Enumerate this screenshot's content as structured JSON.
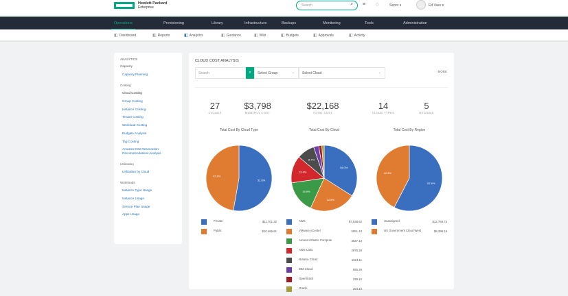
{
  "header": {
    "brand_line1": "Hewlett Packard",
    "brand_line2": "Enterprise",
    "search_placeholder": "Search",
    "tenant": "Sepro",
    "user": "Ed Vasv"
  },
  "nav": [
    {
      "label": "Operations",
      "active": true
    },
    {
      "label": "Provisioning"
    },
    {
      "label": "Library"
    },
    {
      "label": "Infrastructure"
    },
    {
      "label": "Backups"
    },
    {
      "label": "Monitoring"
    },
    {
      "label": "Tools"
    },
    {
      "label": "Administration"
    }
  ],
  "subnav": [
    {
      "label": "Dashboard",
      "icon": "dashboard-icon"
    },
    {
      "label": "Reports",
      "icon": "reports-icon"
    },
    {
      "label": "Analytics",
      "icon": "analytics-icon",
      "active": true
    },
    {
      "label": "Guidance",
      "icon": "guidance-icon"
    },
    {
      "label": "Wiki",
      "icon": "wiki-icon"
    },
    {
      "label": "Budgets",
      "icon": "budgets-icon"
    },
    {
      "label": "Approvals",
      "icon": "approvals-icon"
    },
    {
      "label": "Activity",
      "icon": "activity-icon"
    }
  ],
  "sidebar": {
    "title": "ANALYTICS",
    "groups": [
      {
        "label": "Capacity",
        "items": [
          "Capacity Planning"
        ]
      },
      {
        "label": "Costing",
        "items": [
          "Cloud Costing",
          "Group Costing",
          "Instance Costing",
          "Tenant Costing",
          "Workload Costing",
          "Budgets Analysis",
          "Tag Costing",
          "Amazon EC2 Reservation Recommendations Analysis"
        ]
      },
      {
        "label": "Utilization",
        "items": [
          "Utilization by Cloud"
        ]
      },
      {
        "label": "Workloads",
        "items": [
          "Instance Type Usage",
          "Instance Usage",
          "Service Plan Usage",
          "Apps Usage"
        ]
      }
    ],
    "current": "Cloud Costing"
  },
  "main": {
    "title": "CLOUD COST ANALYSIS",
    "search_placeholder": "Search",
    "group_select": "Select Group",
    "cloud_select": "Select Cloud",
    "more": "MORE",
    "stats": [
      {
        "value": "27",
        "label": "Clouds"
      },
      {
        "value": "$3,798",
        "label": "Monthly Cost"
      },
      {
        "value": "$22,168",
        "label": "Total Cost"
      },
      {
        "value": "14",
        "label": "Cloud Types"
      },
      {
        "value": "5",
        "label": "Regions"
      }
    ]
  },
  "chart_data": [
    {
      "type": "pie",
      "title": "Total Cost By Cloud Type",
      "series": [
        {
          "name": "Private",
          "value": 11701.32,
          "label": "$11,701.32",
          "pct": "52.8%",
          "color": "#3a6fbf"
        },
        {
          "name": "Public",
          "value": 10466.61,
          "label": "$10,466.61",
          "pct": "47.2%",
          "color": "#e07b32"
        }
      ]
    },
    {
      "type": "pie",
      "title": "Total Cost By Cloud",
      "series": [
        {
          "name": "AWS",
          "value": 7538.62,
          "label": "$7,538.62",
          "pct": "34.0%",
          "color": "#3a6fbf"
        },
        {
          "name": "VMware vCenter",
          "value": 5051.1,
          "label": "5051.10",
          "pct": "22.8%",
          "color": "#e07b32"
        },
        {
          "name": "Amazon Elastic Compute",
          "value": 3527.13,
          "label": "3527.13",
          "pct": "15.9%",
          "color": "#3b9a48"
        },
        {
          "name": "AWS Labs",
          "value": 2978.26,
          "label": "2978.26",
          "pct": "13.4%",
          "color": "#d2282d"
        },
        {
          "name": "Nutanix Cloud",
          "value": 1924.11,
          "label": "1924.11",
          "pct": "8.7%",
          "color": "#4c4c4c"
        },
        {
          "name": "IBM Cloud",
          "value": 555.26,
          "label": "555.26",
          "pct": "2.5%",
          "color": "#6a3fa6"
        },
        {
          "name": "OpenStack",
          "value": 329.42,
          "label": "329.42",
          "pct": "1.5%",
          "color": "#9e1d24"
        },
        {
          "name": "Oracle",
          "value": 264.1,
          "label": "264.10",
          "pct": "1.2%",
          "color": "#a59d3a"
        }
      ]
    },
    {
      "type": "pie",
      "title": "Total Cost By Region",
      "series": [
        {
          "name": "Unassigned",
          "value": 12768.74,
          "label": "$12,768.74",
          "pct": "57.6%",
          "color": "#3a6fbf"
        },
        {
          "name": "US Government Cloud West",
          "value": 9399.19,
          "label": "$9,399.19",
          "pct": "42.4%",
          "color": "#e07b32"
        }
      ]
    }
  ]
}
